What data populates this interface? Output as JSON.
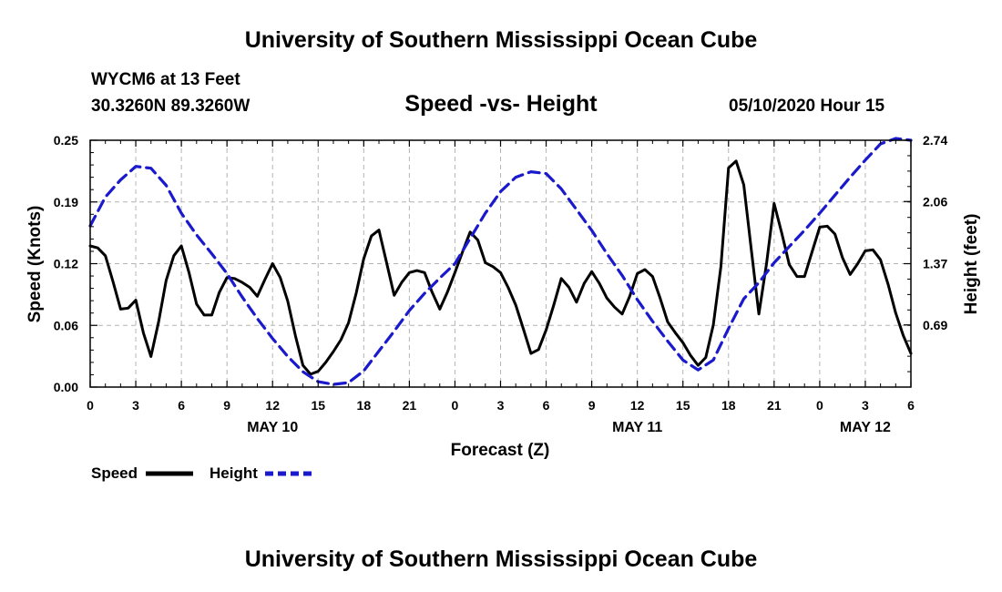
{
  "header": {
    "title_top": "University of Southern Mississippi Ocean Cube",
    "station": "WYCM6 at 13 Feet",
    "coords": "30.3260N 89.3260W",
    "subtitle": "Speed -vs- Height",
    "datetime": "05/10/2020 Hour 15",
    "title_bottom": "University of Southern Mississippi Ocean Cube"
  },
  "colors": {
    "speed": "#000000",
    "height": "#1a1acc",
    "grid": "#b4b4b4"
  },
  "chart_data": {
    "type": "line",
    "title": "Speed -vs- Height",
    "xlabel": "Forecast (Z)",
    "ylabel_left": "Speed (Knots)",
    "ylabel_right": "Height (feet)",
    "x_range_hours": [
      0,
      54
    ],
    "x_ticks": [
      {
        "h": 0,
        "label": "0"
      },
      {
        "h": 3,
        "label": "3"
      },
      {
        "h": 6,
        "label": "6"
      },
      {
        "h": 9,
        "label": "9"
      },
      {
        "h": 12,
        "label": "12"
      },
      {
        "h": 15,
        "label": "15"
      },
      {
        "h": 18,
        "label": "18"
      },
      {
        "h": 21,
        "label": "21"
      },
      {
        "h": 24,
        "label": "0"
      },
      {
        "h": 27,
        "label": "3"
      },
      {
        "h": 30,
        "label": "6"
      },
      {
        "h": 33,
        "label": "9"
      },
      {
        "h": 36,
        "label": "12"
      },
      {
        "h": 39,
        "label": "15"
      },
      {
        "h": 42,
        "label": "18"
      },
      {
        "h": 45,
        "label": "21"
      },
      {
        "h": 48,
        "label": "0"
      },
      {
        "h": 51,
        "label": "3"
      },
      {
        "h": 54,
        "label": "6"
      }
    ],
    "date_labels": [
      {
        "h": 12,
        "label": "MAY 10"
      },
      {
        "h": 36,
        "label": "MAY 11"
      },
      {
        "h": 51,
        "label": "MAY 12"
      }
    ],
    "y_left": {
      "min": 0,
      "max": 0.25,
      "ticks": [
        "0.00",
        "0.06",
        "0.12",
        "0.19",
        "0.25"
      ]
    },
    "y_right": {
      "min": 0.0,
      "max": 2.74,
      "ticks": [
        "0.69",
        "1.37",
        "2.06",
        "2.74"
      ]
    },
    "legend": [
      {
        "label": "Speed",
        "style": "solid"
      },
      {
        "label": "Height",
        "style": "dashed"
      }
    ],
    "series": [
      {
        "name": "Speed",
        "axis": "left",
        "points": [
          [
            0,
            0.143
          ],
          [
            0.5,
            0.141
          ],
          [
            1,
            0.133
          ],
          [
            1.5,
            0.107
          ],
          [
            2,
            0.079
          ],
          [
            2.5,
            0.08
          ],
          [
            3,
            0.088
          ],
          [
            3.5,
            0.055
          ],
          [
            4,
            0.031
          ],
          [
            4.5,
            0.066
          ],
          [
            5,
            0.108
          ],
          [
            5.5,
            0.133
          ],
          [
            6,
            0.143
          ],
          [
            6.5,
            0.116
          ],
          [
            7,
            0.084
          ],
          [
            7.5,
            0.073
          ],
          [
            8,
            0.073
          ],
          [
            8.5,
            0.096
          ],
          [
            9,
            0.111
          ],
          [
            9.5,
            0.11
          ],
          [
            10,
            0.106
          ],
          [
            10.5,
            0.101
          ],
          [
            11,
            0.092
          ],
          [
            11.5,
            0.109
          ],
          [
            12,
            0.125
          ],
          [
            12.5,
            0.111
          ],
          [
            13,
            0.087
          ],
          [
            13.5,
            0.052
          ],
          [
            14,
            0.022
          ],
          [
            14.5,
            0.013
          ],
          [
            15,
            0.016
          ],
          [
            15.5,
            0.025
          ],
          [
            16,
            0.036
          ],
          [
            16.5,
            0.048
          ],
          [
            17,
            0.065
          ],
          [
            17.5,
            0.095
          ],
          [
            18,
            0.13
          ],
          [
            18.5,
            0.153
          ],
          [
            19,
            0.159
          ],
          [
            19.5,
            0.126
          ],
          [
            20,
            0.093
          ],
          [
            20.5,
            0.106
          ],
          [
            21,
            0.116
          ],
          [
            21.5,
            0.118
          ],
          [
            22,
            0.116
          ],
          [
            22.5,
            0.096
          ],
          [
            23,
            0.079
          ],
          [
            23.5,
            0.096
          ],
          [
            24,
            0.116
          ],
          [
            24.5,
            0.137
          ],
          [
            25,
            0.157
          ],
          [
            25.5,
            0.149
          ],
          [
            26,
            0.126
          ],
          [
            26.5,
            0.122
          ],
          [
            27,
            0.116
          ],
          [
            27.5,
            0.101
          ],
          [
            28,
            0.083
          ],
          [
            28.5,
            0.059
          ],
          [
            29,
            0.034
          ],
          [
            29.5,
            0.038
          ],
          [
            30,
            0.058
          ],
          [
            30.5,
            0.083
          ],
          [
            31,
            0.11
          ],
          [
            31.5,
            0.101
          ],
          [
            32,
            0.086
          ],
          [
            32.5,
            0.105
          ],
          [
            33,
            0.117
          ],
          [
            33.5,
            0.105
          ],
          [
            34,
            0.09
          ],
          [
            34.5,
            0.081
          ],
          [
            35,
            0.074
          ],
          [
            35.5,
            0.092
          ],
          [
            36,
            0.115
          ],
          [
            36.5,
            0.119
          ],
          [
            37,
            0.112
          ],
          [
            37.5,
            0.09
          ],
          [
            38,
            0.066
          ],
          [
            38.5,
            0.055
          ],
          [
            39,
            0.045
          ],
          [
            39.5,
            0.032
          ],
          [
            40,
            0.022
          ],
          [
            40.5,
            0.03
          ],
          [
            41,
            0.063
          ],
          [
            41.5,
            0.122
          ],
          [
            42,
            0.222
          ],
          [
            42.5,
            0.229
          ],
          [
            43,
            0.205
          ],
          [
            43.5,
            0.139
          ],
          [
            44,
            0.074
          ],
          [
            44.5,
            0.125
          ],
          [
            45,
            0.186
          ],
          [
            45.5,
            0.156
          ],
          [
            46,
            0.124
          ],
          [
            46.5,
            0.112
          ],
          [
            47,
            0.112
          ],
          [
            47.5,
            0.137
          ],
          [
            48,
            0.162
          ],
          [
            48.5,
            0.163
          ],
          [
            49,
            0.155
          ],
          [
            49.5,
            0.131
          ],
          [
            50,
            0.114
          ],
          [
            50.5,
            0.125
          ],
          [
            51,
            0.138
          ],
          [
            51.5,
            0.139
          ],
          [
            52,
            0.129
          ],
          [
            52.5,
            0.104
          ],
          [
            53,
            0.075
          ],
          [
            53.5,
            0.052
          ],
          [
            54,
            0.034
          ]
        ]
      },
      {
        "name": "Height",
        "axis": "right",
        "points": [
          [
            0,
            1.79
          ],
          [
            1,
            2.11
          ],
          [
            2,
            2.3
          ],
          [
            3,
            2.45
          ],
          [
            4,
            2.43
          ],
          [
            5,
            2.24
          ],
          [
            6,
            1.93
          ],
          [
            7,
            1.69
          ],
          [
            8,
            1.48
          ],
          [
            9,
            1.26
          ],
          [
            10,
            1.0
          ],
          [
            11,
            0.76
          ],
          [
            12,
            0.54
          ],
          [
            13,
            0.34
          ],
          [
            14,
            0.17
          ],
          [
            15,
            0.06
          ],
          [
            16,
            0.03
          ],
          [
            17,
            0.05
          ],
          [
            18,
            0.18
          ],
          [
            19,
            0.4
          ],
          [
            20,
            0.62
          ],
          [
            21,
            0.85
          ],
          [
            22,
            1.04
          ],
          [
            23,
            1.21
          ],
          [
            24,
            1.37
          ],
          [
            25,
            1.65
          ],
          [
            26,
            1.93
          ],
          [
            27,
            2.17
          ],
          [
            28,
            2.33
          ],
          [
            29,
            2.39
          ],
          [
            30,
            2.37
          ],
          [
            31,
            2.2
          ],
          [
            32,
            1.97
          ],
          [
            33,
            1.74
          ],
          [
            34,
            1.48
          ],
          [
            35,
            1.24
          ],
          [
            36,
            0.97
          ],
          [
            37,
            0.73
          ],
          [
            38,
            0.51
          ],
          [
            39,
            0.3
          ],
          [
            40,
            0.19
          ],
          [
            41,
            0.3
          ],
          [
            42,
            0.65
          ],
          [
            43,
            0.98
          ],
          [
            44,
            1.16
          ],
          [
            45,
            1.38
          ],
          [
            46,
            1.56
          ],
          [
            47,
            1.74
          ],
          [
            48,
            1.93
          ],
          [
            49,
            2.13
          ],
          [
            50,
            2.33
          ],
          [
            51,
            2.52
          ],
          [
            52,
            2.7
          ],
          [
            53,
            2.76
          ],
          [
            54,
            2.74
          ]
        ]
      }
    ]
  }
}
